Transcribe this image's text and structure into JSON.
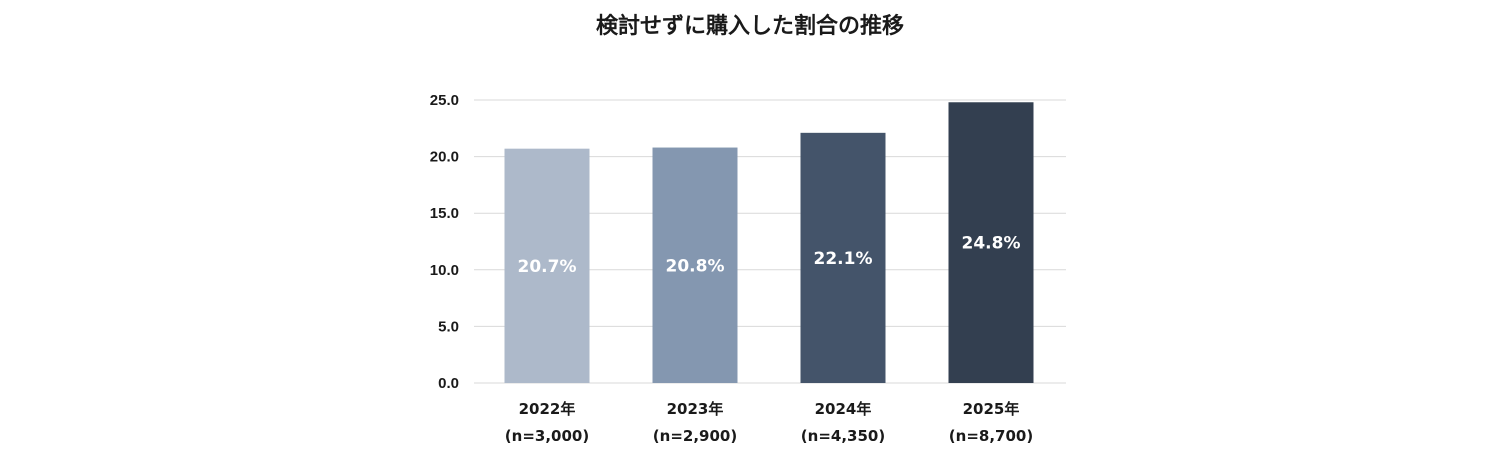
{
  "chart_data": {
    "type": "bar",
    "title": "検討せずに購入した割合の推移",
    "xlabel": "",
    "ylabel": "",
    "ylim": [
      0,
      25
    ],
    "yticks": [
      "0.0",
      "5.0",
      "10.0",
      "15.0",
      "20.0",
      "25.0"
    ],
    "grid": true,
    "categories": [
      "2022年",
      "2023年",
      "2024年",
      "2025年"
    ],
    "sample_sizes": [
      "(n=3,000)",
      "(n=2,900)",
      "(n=4,350)",
      "(n=8,700)"
    ],
    "values": [
      20.7,
      20.8,
      22.1,
      24.8
    ],
    "data_labels": [
      "20.7%",
      "20.8%",
      "22.1%",
      "24.8%"
    ],
    "colors": [
      "#adb9ca",
      "#8497b0",
      "#44546a",
      "#333f50"
    ]
  }
}
